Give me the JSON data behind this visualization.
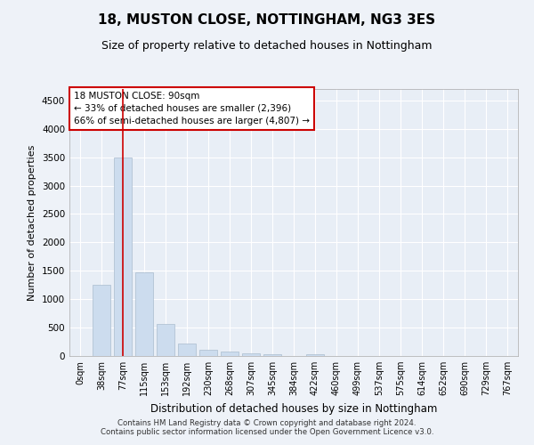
{
  "title": "18, MUSTON CLOSE, NOTTINGHAM, NG3 3ES",
  "subtitle": "Size of property relative to detached houses in Nottingham",
  "xlabel": "Distribution of detached houses by size in Nottingham",
  "ylabel": "Number of detached properties",
  "bin_labels": [
    "0sqm",
    "38sqm",
    "77sqm",
    "115sqm",
    "153sqm",
    "192sqm",
    "230sqm",
    "268sqm",
    "307sqm",
    "345sqm",
    "384sqm",
    "422sqm",
    "460sqm",
    "499sqm",
    "537sqm",
    "575sqm",
    "614sqm",
    "652sqm",
    "690sqm",
    "729sqm",
    "767sqm"
  ],
  "bar_heights": [
    5,
    1250,
    3500,
    1480,
    560,
    220,
    110,
    75,
    50,
    30,
    5,
    30,
    5,
    0,
    0,
    0,
    0,
    0,
    0,
    0,
    0
  ],
  "bar_color": "#ccdcee",
  "bar_edgecolor": "#aabcce",
  "ylim": [
    0,
    4700
  ],
  "yticks": [
    0,
    500,
    1000,
    1500,
    2000,
    2500,
    3000,
    3500,
    4000,
    4500
  ],
  "red_line_x": 2,
  "annotation_title": "18 MUSTON CLOSE: 90sqm",
  "annotation_line1": "← 33% of detached houses are smaller (2,396)",
  "annotation_line2": "66% of semi-detached houses are larger (4,807) →",
  "footer_line1": "Contains HM Land Registry data © Crown copyright and database right 2024.",
  "footer_line2": "Contains public sector information licensed under the Open Government Licence v3.0.",
  "background_color": "#eef2f8",
  "plot_bg_color": "#e8eef6",
  "grid_color": "#ffffff",
  "annotation_box_color": "#ffffff",
  "annotation_box_edgecolor": "#cc0000",
  "red_line_color": "#cc0000",
  "title_fontsize": 11,
  "subtitle_fontsize": 9,
  "ylabel_fontsize": 8,
  "xlabel_fontsize": 8.5,
  "tick_fontsize": 7.5,
  "xtick_fontsize": 7,
  "annotation_fontsize": 7.5,
  "footer_fontsize": 6.2
}
